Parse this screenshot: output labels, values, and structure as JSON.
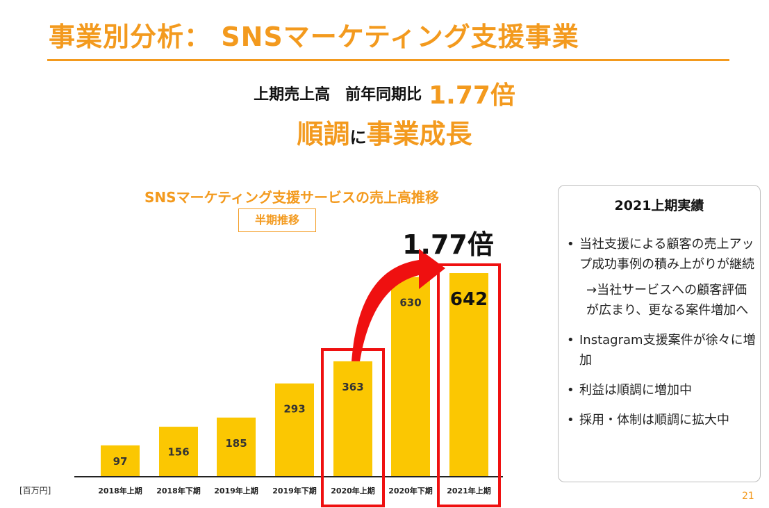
{
  "title": "事業別分析： SNSマーケティング支援事業",
  "headline": {
    "line1_prefix": "上期売上高　前年同期比",
    "line1_value": "1.77倍",
    "line2_part1": "順調",
    "line2_part2": "に",
    "line2_part3": "事業成長"
  },
  "colors": {
    "accent": "#f39a1e",
    "bar": "#fbc702",
    "highlight": "#ef1010"
  },
  "chart_data": {
    "type": "bar",
    "title": "SNSマーケティング支援サービスの売上高推移",
    "subtitle": "半期推移",
    "unit": "[百万円]",
    "categories": [
      "2018年上期",
      "2018年下期",
      "2019年上期",
      "2019年下期",
      "2020年上期",
      "2020年下期",
      "2021年上期"
    ],
    "values": [
      97,
      156,
      185,
      293,
      363,
      630,
      642
    ],
    "value_labels": [
      "97",
      "156",
      "185",
      "293",
      "363",
      "630",
      "642"
    ],
    "highlighted": [
      "2020年上期",
      "2021年上期"
    ],
    "growth_annotation": "1.77倍",
    "ylim": [
      0,
      700
    ]
  },
  "panel": {
    "title": "2021上期実績",
    "items": [
      {
        "bullet": "•",
        "text": "当社支援による顧客の売上アップ成功事例の積み上がりが継続"
      },
      {
        "bullet": "",
        "text": "→当社サービスへの顧客評価が広まり、更なる案件増加へ"
      },
      {
        "bullet": "•",
        "text": "Instagram支援案件が徐々に増加"
      },
      {
        "bullet": "•",
        "text": "利益は順調に増加中"
      },
      {
        "bullet": "•",
        "text": "採用・体制は順調に拡大中"
      }
    ]
  },
  "page_number": "21"
}
